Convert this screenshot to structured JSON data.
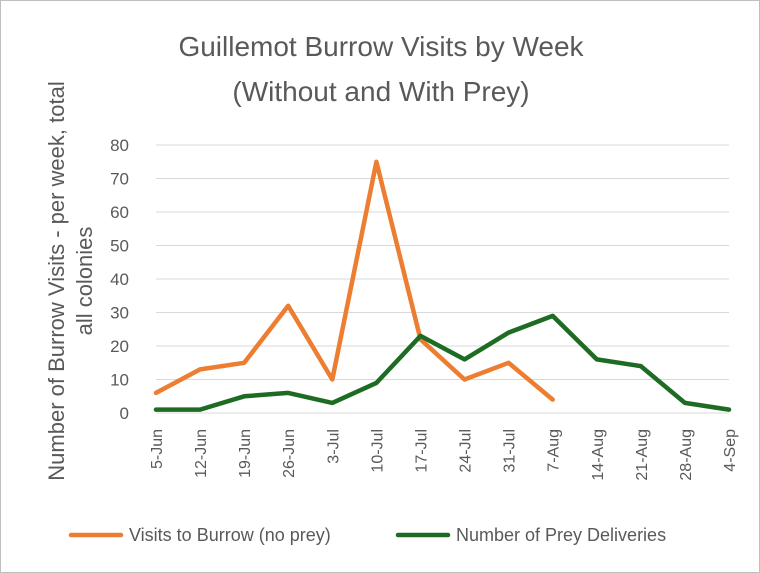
{
  "chart_data": {
    "type": "line",
    "title": "Guillemot Burrow Visits by Week",
    "subtitle": "(Without and With Prey)",
    "ylabel_line1": "Number of Burrow Visits - per week, total",
    "ylabel_line2": "all colonies",
    "xlabel": "",
    "ylim": [
      0,
      80
    ],
    "yticks": [
      0,
      10,
      20,
      30,
      40,
      50,
      60,
      70,
      80
    ],
    "categories": [
      "5-Jun",
      "12-Jun",
      "19-Jun",
      "26-Jun",
      "3-Jul",
      "10-Jul",
      "17-Jul",
      "24-Jul",
      "31-Jul",
      "7-Aug",
      "14-Aug",
      "21-Aug",
      "28-Aug",
      "4-Sep"
    ],
    "grid": true,
    "legend_position": "bottom",
    "series": [
      {
        "name": "Visits to Burrow (no prey)",
        "color": "#ed7d31",
        "values": [
          6,
          13,
          15,
          32,
          10,
          75,
          22,
          10,
          15,
          4,
          null,
          null,
          null,
          null
        ]
      },
      {
        "name": "Number of Prey Deliveries",
        "color": "#1e6b24",
        "values": [
          1,
          1,
          5,
          6,
          3,
          9,
          23,
          16,
          24,
          29,
          16,
          14,
          3,
          1
        ]
      }
    ]
  }
}
